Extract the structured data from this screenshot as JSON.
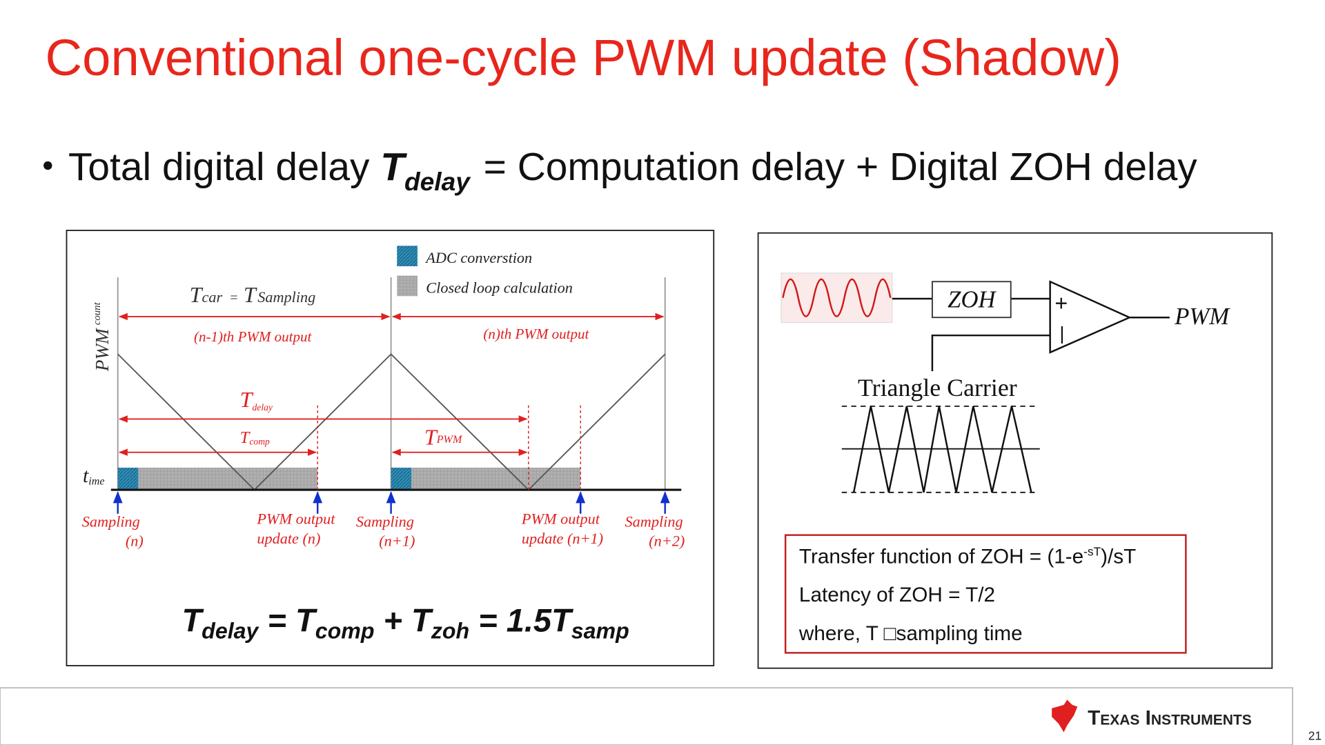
{
  "title": "Conventional one-cycle PWM update (Shadow)",
  "bullet": {
    "before": "Total digital delay",
    "symbol": "T",
    "subscript": "delay",
    "after": "= Computation delay + Digital ZOH delay"
  },
  "timing_diagram": {
    "legend": [
      "ADC converstion",
      "Closed loop calculation"
    ],
    "y_axis": {
      "main": "PWM",
      "sub": "count"
    },
    "t_car": {
      "main": "T",
      "sub": "car"
    },
    "equals": "=",
    "t_sampling": {
      "main": "T",
      "sub": "Sampling"
    },
    "periods": [
      "(n-1)th PWM output",
      "(n)th PWM output"
    ],
    "t_delay": {
      "main": "T",
      "sub": "delay"
    },
    "t_comp": {
      "main": "T",
      "sub": "comp"
    },
    "t_pwm": {
      "main": "T",
      "sub": "PWM"
    },
    "time_axis": {
      "main": "t",
      "sub": "ime"
    },
    "events": [
      [
        "Sampling",
        "(n)"
      ],
      [
        "PWM output",
        "update (n)"
      ],
      [
        "Sampling",
        "(n+1)"
      ],
      [
        "PWM output",
        "update (n+1)"
      ],
      [
        "Sampling",
        "(n+2)"
      ]
    ],
    "formula": [
      [
        "T",
        "delay"
      ],
      "=",
      [
        "T",
        "comp"
      ],
      "+",
      [
        "T",
        "zoh"
      ],
      "=",
      [
        "1.5T",
        "samp"
      ]
    ]
  },
  "block_diagram": {
    "zoh": "ZOH",
    "plus": "+",
    "minus": "|",
    "output": "PWM",
    "carrier": "Triangle Carrier",
    "notes": {
      "line1": {
        "before": "Transfer function of ZOH = (1-e",
        "sup": "-sT",
        "after": ")/sT"
      },
      "line2": "Latency of ZOH = T/2",
      "line3": "where, T □sampling time"
    }
  },
  "footer": {
    "brand": "Texas Instruments",
    "page": "21"
  }
}
